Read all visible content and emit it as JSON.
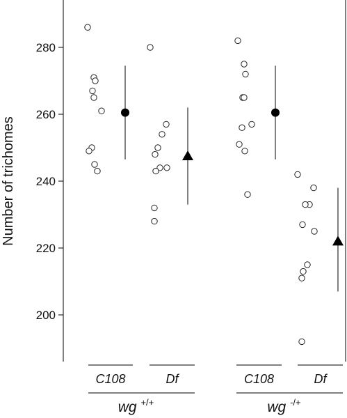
{
  "chart_data": {
    "type": "scatter",
    "title": "",
    "xlabel": "",
    "ylabel": "Number of trichomes",
    "ylim": [
      184,
      300
    ],
    "yticks": [
      200,
      220,
      240,
      260,
      280
    ],
    "grid": false,
    "legend": "none",
    "colors": {
      "points": "#ffffff",
      "point_stroke": "#222222",
      "summary": "#000000"
    },
    "groups": [
      {
        "label": "wg",
        "superscript": "+/+",
        "categories": [
          "C108",
          "Df"
        ]
      },
      {
        "label": "wg",
        "superscript": "-/+",
        "categories": [
          "C108",
          "Df"
        ]
      }
    ],
    "series": [
      {
        "category": "C108",
        "group": 0,
        "points": [
          286,
          271,
          270,
          267,
          265,
          261,
          250,
          249,
          245,
          243
        ],
        "summary": {
          "marker": "circle",
          "mean": 260.5,
          "low": 246.5,
          "high": 274.5
        }
      },
      {
        "category": "Df",
        "group": 0,
        "points": [
          280,
          257,
          254,
          250,
          248,
          244,
          244,
          243,
          232,
          228
        ],
        "summary": {
          "marker": "triangle",
          "mean": 247.5,
          "low": 233,
          "high": 262
        }
      },
      {
        "category": "C108",
        "group": 1,
        "points": [
          282,
          275,
          272,
          265,
          265,
          257,
          256,
          251,
          249,
          236
        ],
        "summary": {
          "marker": "circle",
          "mean": 260.5,
          "low": 246.5,
          "high": 274.5
        }
      },
      {
        "category": "Df",
        "group": 1,
        "points": [
          242,
          238,
          233,
          233,
          227,
          225,
          215,
          213,
          211,
          192
        ],
        "summary": {
          "marker": "triangle",
          "mean": 222,
          "low": 207,
          "high": 238
        }
      }
    ]
  }
}
